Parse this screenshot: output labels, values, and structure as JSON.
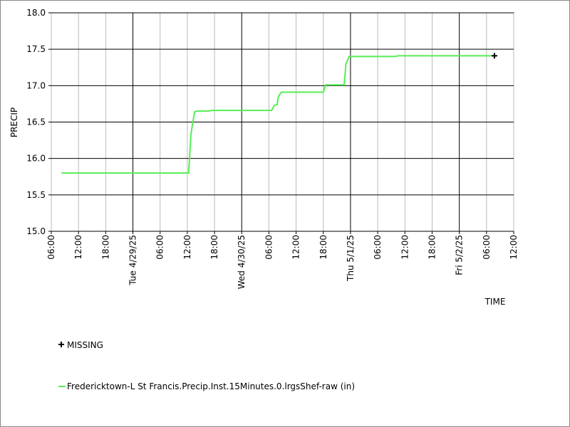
{
  "chart_data": {
    "type": "line",
    "ylabel": "PRECIP",
    "xlabel": "TIME",
    "xlim": [
      6,
      108
    ],
    "ylim": [
      15,
      18
    ],
    "xticks": [
      {
        "value": 6,
        "label": "06:00"
      },
      {
        "value": 12,
        "label": "12:00"
      },
      {
        "value": 18,
        "label": "18:00"
      },
      {
        "value": 24,
        "label": "Tue 4/29/25"
      },
      {
        "value": 30,
        "label": "06:00"
      },
      {
        "value": 36,
        "label": "12:00"
      },
      {
        "value": 42,
        "label": "18:00"
      },
      {
        "value": 48,
        "label": "Wed 4/30/25"
      },
      {
        "value": 54,
        "label": "06:00"
      },
      {
        "value": 60,
        "label": "12:00"
      },
      {
        "value": 66,
        "label": "18:00"
      },
      {
        "value": 72,
        "label": "Thu 5/1/25"
      },
      {
        "value": 78,
        "label": "06:00"
      },
      {
        "value": 84,
        "label": "12:00"
      },
      {
        "value": 90,
        "label": "18:00"
      },
      {
        "value": 96,
        "label": "Fri 5/2/25"
      },
      {
        "value": 102,
        "label": "06:00"
      },
      {
        "value": 108,
        "label": "12:00"
      }
    ],
    "yticks": [
      {
        "value": 15,
        "label": "15.0"
      },
      15.5,
      {
        "value": 16,
        "label": "16.0"
      },
      16.5,
      {
        "value": 17,
        "label": "17.0"
      },
      17.5,
      {
        "value": 18,
        "label": "18.0"
      }
    ],
    "grid": true,
    "series": [
      {
        "name": "Fredericktown-L St Francis.Precip.Inst.15Minutes.0.lrgsShef-raw (in)",
        "color": "#55ee55",
        "x": [
          8.25,
          36.3,
          36.8,
          37.1,
          37.6,
          38,
          40.75,
          41.4,
          54.6,
          55.2,
          55.8,
          56.1,
          56.75,
          66,
          66.5,
          70.6,
          71,
          71.7,
          81.9,
          82.5,
          103.75
        ],
        "values": [
          15.8,
          15.8,
          16.33,
          16.45,
          16.64,
          16.65,
          16.65,
          16.66,
          16.66,
          16.73,
          16.74,
          16.85,
          16.91,
          16.91,
          17.01,
          17.01,
          17.3,
          17.4,
          17.4,
          17.41,
          17.41
        ]
      }
    ],
    "missing": {
      "name": "MISSING",
      "color": "#000000",
      "x": [
        103.75
      ],
      "values": [
        17.41
      ]
    }
  }
}
